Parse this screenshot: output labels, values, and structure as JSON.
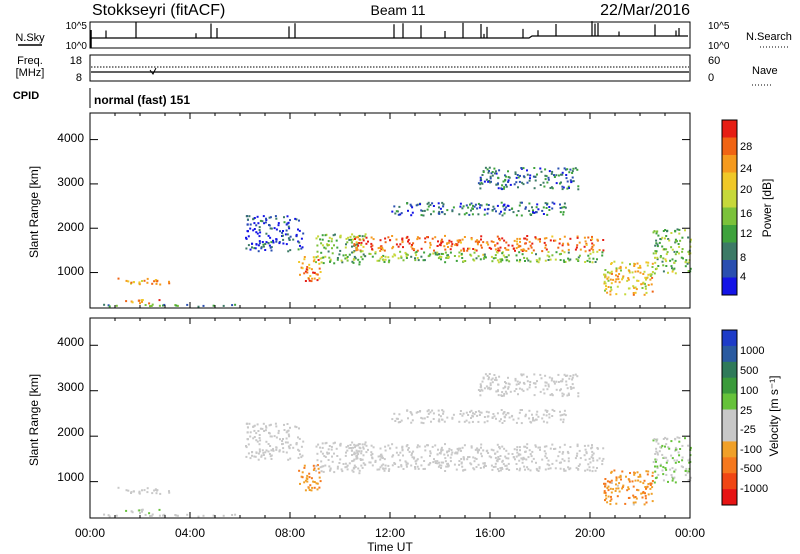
{
  "header": {
    "station": "Stokkseyri (fitACF)",
    "beam": "Beam 11",
    "date": "22/Mar/2016"
  },
  "summary": {
    "nsky_label": "N.Sky",
    "nsky_ticks": [
      "10^5",
      "10^0"
    ],
    "nsearch_label": "N.Search",
    "freq_label_line1": "Freq.",
    "freq_label_line2": "[MHz]",
    "freq_ticks": [
      "18",
      "8"
    ],
    "nave_ticks": [
      "60",
      "0"
    ],
    "nave_label": "Nave",
    "cpid_label": "CPID",
    "cpid_value": "normal (fast) 151"
  },
  "x_axis": {
    "label": "Time UT",
    "ticks": [
      "00:00",
      "04:00",
      "08:00",
      "12:00",
      "16:00",
      "20:00",
      "00:00"
    ]
  },
  "power_panel": {
    "ylabel": "Slant Range [km]",
    "yticks": [
      "1000",
      "2000",
      "3000",
      "4000"
    ],
    "colorbar_title": "Power [dB]",
    "colorbar_ticks": [
      "4",
      "8",
      "12",
      "16",
      "20",
      "24",
      "28"
    ],
    "colors": [
      "#1414e6",
      "#2a4fb0",
      "#3c7a66",
      "#3ea23c",
      "#7bc23a",
      "#c6d83a",
      "#f0c828",
      "#f59a1e",
      "#f06414",
      "#e61e14"
    ]
  },
  "velocity_panel": {
    "ylabel": "Slant Range [km]",
    "yticks": [
      "1000",
      "2000",
      "3000",
      "4000"
    ],
    "colorbar_title": "Velocity [m s⁻¹]",
    "colorbar_ticks": [
      "1000",
      "500",
      "100",
      "25",
      "-25",
      "-100",
      "-500",
      "-1000"
    ],
    "colors": [
      "#1e3cc8",
      "#2a5aa0",
      "#2f7a5a",
      "#3a9a3a",
      "#66c23a",
      "#c8c8c8",
      "#c8c8c8",
      "#f0a028",
      "#f5781e",
      "#f04614",
      "#e61414"
    ]
  },
  "chart_data": {
    "type": "heatmap",
    "x_unit": "hours UT",
    "xlim": [
      0,
      24
    ],
    "ylim": [
      200,
      4600
    ],
    "panels": [
      "Power [dB]",
      "Velocity [m s⁻¹]"
    ],
    "scatter_regions": [
      {
        "t": [
          1.0,
          3.2
        ],
        "r": [
          750,
          900
        ],
        "power": 22,
        "velocity": 0
      },
      {
        "t": [
          1.3,
          3.0
        ],
        "r": [
          320,
          420
        ],
        "power": 24,
        "velocity": 100
      },
      {
        "t": [
          0.1,
          6.0
        ],
        "r": [
          250,
          300
        ],
        "power": 10,
        "velocity": 0
      },
      {
        "t": [
          6.2,
          8.5
        ],
        "r": [
          1500,
          2300
        ],
        "power": 6,
        "velocity": 0
      },
      {
        "t": [
          8.3,
          9.2
        ],
        "r": [
          800,
          1400
        ],
        "power": 24,
        "velocity": -500
      },
      {
        "t": [
          9.0,
          11.0
        ],
        "r": [
          1200,
          1900
        ],
        "power": 14,
        "velocity": 0
      },
      {
        "t": [
          10.5,
          20.5
        ],
        "r": [
          1500,
          1850
        ],
        "power": 26,
        "velocity": 0
      },
      {
        "t": [
          10.5,
          20.5
        ],
        "r": [
          1250,
          1500
        ],
        "power": 14,
        "velocity": 0
      },
      {
        "t": [
          12.0,
          19.0
        ],
        "r": [
          2300,
          2600
        ],
        "power": 8,
        "velocity": 0
      },
      {
        "t": [
          15.5,
          19.5
        ],
        "r": [
          2900,
          3400
        ],
        "power": 8,
        "velocity": 0
      },
      {
        "t": [
          20.5,
          22.5
        ],
        "r": [
          500,
          1300
        ],
        "power": 20,
        "velocity": -500
      },
      {
        "t": [
          22.5,
          24.0
        ],
        "r": [
          1000,
          2000
        ],
        "power": 14,
        "velocity": 100
      }
    ]
  }
}
